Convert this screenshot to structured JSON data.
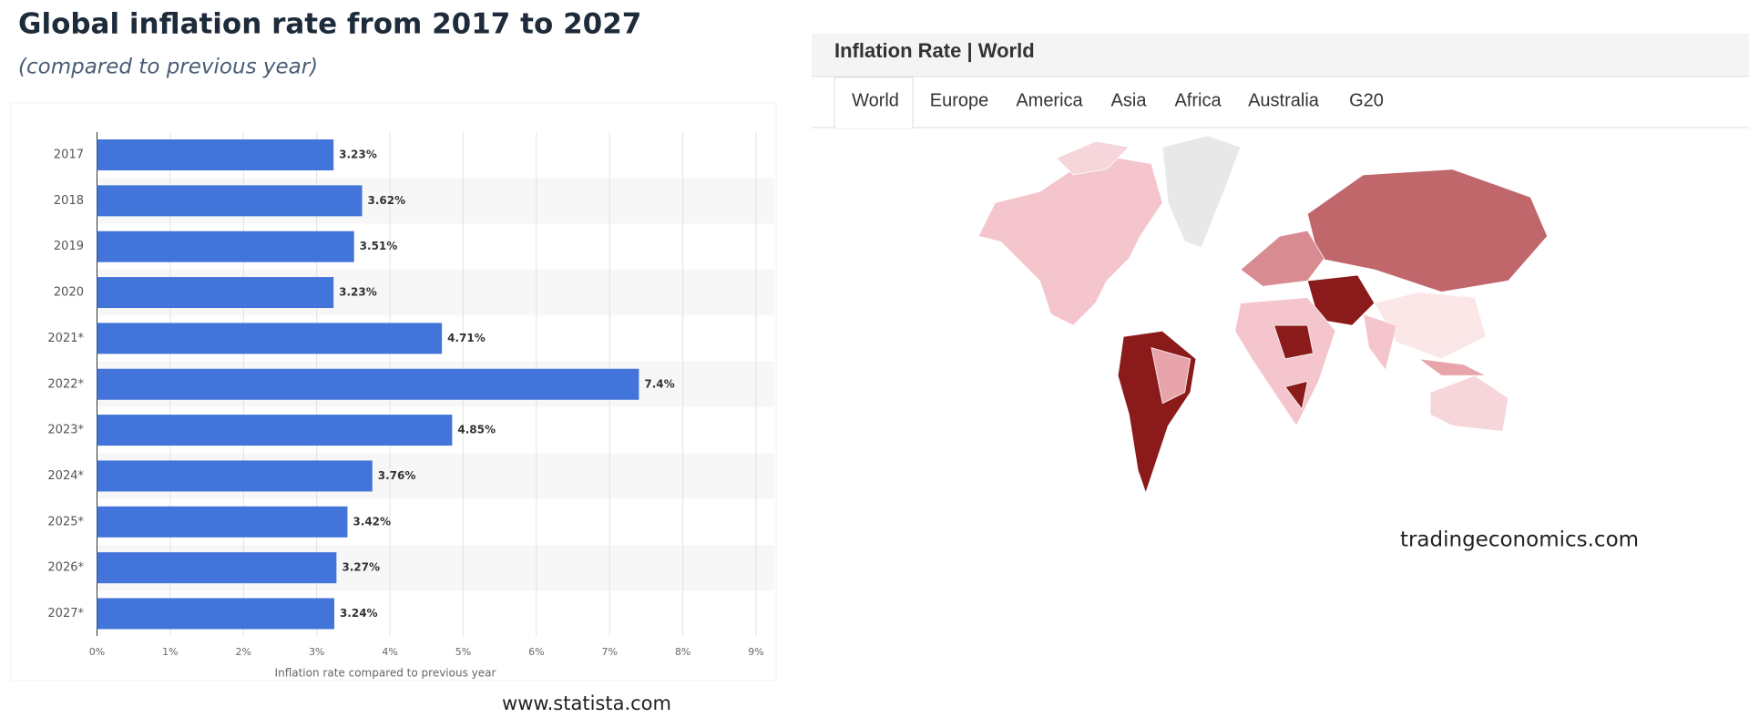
{
  "chart_data": {
    "type": "bar",
    "orientation": "horizontal",
    "title": "Global inflation rate from 2017 to 2027",
    "subtitle": "(compared to previous year)",
    "x_label": "Inflation rate compared to previous year",
    "source": "www.statista.com",
    "categories": [
      "2017",
      "2018",
      "2019",
      "2020",
      "2021*",
      "2022*",
      "2023*",
      "2024*",
      "2025*",
      "2026*",
      "2027*"
    ],
    "values": [
      3.23,
      3.62,
      3.51,
      3.23,
      4.71,
      7.4,
      4.85,
      3.76,
      3.42,
      3.27,
      3.24
    ],
    "value_labels": [
      "3.23%",
      "3.62%",
      "3.51%",
      "3.23%",
      "4.71%",
      "7.4%",
      "4.85%",
      "3.76%",
      "3.42%",
      "3.27%",
      "3.24%"
    ],
    "color": "#4274d9",
    "xlim": [
      0,
      9
    ],
    "xticks": [
      {
        "value": 0,
        "label": "0%"
      },
      {
        "value": 1,
        "label": "1%"
      },
      {
        "value": 2,
        "label": "2%"
      },
      {
        "value": 3,
        "label": "3%"
      },
      {
        "value": 4,
        "label": "4%"
      },
      {
        "value": 5,
        "label": "5%"
      },
      {
        "value": 6,
        "label": "6%"
      },
      {
        "value": 7,
        "label": "7%"
      },
      {
        "value": 8,
        "label": "8%"
      },
      {
        "value": 9,
        "label": "9%"
      }
    ],
    "grid": true
  },
  "map_panel": {
    "title": "Inflation Rate | World",
    "tabs": [
      "World",
      "Europe",
      "America",
      "Asia",
      "Africa",
      "Australia",
      "G20"
    ],
    "source": "tradingeconomics.com"
  }
}
